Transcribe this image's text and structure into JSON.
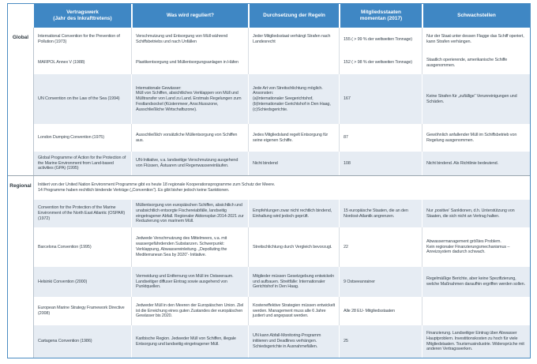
{
  "table": {
    "headers": [
      "",
      "Vertragswerk\n(Jahr des Inkrafttretens)",
      "Was wird reguliert?",
      "Durchsetzung der Regeln",
      "Mitgliedsstaaten\nmomentan (2017)",
      "Schwachstellen"
    ],
    "sections": [
      {
        "label": "Global",
        "intro": "",
        "rows": [
          [
            "International Convention for the Prevention of Pollution (1973)",
            "Verschmutzung und Entsorgung von Müll während Schiffsbetriebs und nach Unfällen",
            "Jeder Mitgliedsstaat verhängt Strafen nach Landesrecht",
            "155 ( > 99 % der weltweiten Tonnage)",
            "Nur der Staat unter dessen Flagge das Schiff operiert, kann Strafen verhängen."
          ],
          [
            "MARPOL Annex V (1988)",
            "Plastikentsorgung und Müllentsorgungsanlagen in Häfen",
            "",
            "152 ( > 98 % der weltweiten Tonnage)",
            "Staatlich operierende, amerikanische Schiffe ausgenommen."
          ],
          [
            "UN Convention on the Law of the Sea (1994)",
            "Internationale Gewässer:\nMüll von Schiffen, absichtliches Verklappen von Müll und Mülltransfer von Land zu Land. Erstmals Regelungen zum Festlandsockel (Küstenmeer, Anschlusszone, Ausschließliche Wirtschaftszone).",
            "Jede Art von Streitschlichtung möglich.\nAnsonsten:\n(a)Internationaler Seegerichtshof,\n(b)Internationaler Gerichtshof in Den Haag,\n(c)Schiedsgerichte.",
            "167",
            "Keine Strafen für „zufällige“ Verunreinigungen und Schäden."
          ],
          [
            "London Dumping Convention (1975)",
            "Ausschließlich vorsätzliche Müllentsorgung von Schiffen aus.",
            "Jedes Mitgliedsland regelt Entsorgung für seine eigenen Schiffe.",
            "87",
            "Gewöhnlich anfallender Müll im Schiffsbetrieb von Regelung ausgenommen."
          ],
          [
            "Global Programme of Action for the Protection of the Marine Environment from Land-based activities (GPA) (1995)",
            "UN-Initiative, v.a. landseitige Verschmutzung ausgehend von Flüssen, Ästuaren und Regenwassereinläufen.",
            "Nicht bindend",
            "108",
            "Nicht bindend. Als Richtlinie bedeutend."
          ]
        ]
      },
      {
        "label": "Regional",
        "intro": "Initiiert von der United Nation Environment Programme gibt es heute 18 regionale Kooperationsprogramme zum Schutz der Meere.\n14 Programme haben rechtlich bindende Verträge („Convention“). Es gibt bisher jedoch keine Sanktionen.",
        "rows": [
          [
            "Convention for the Protection of the Marine Environment of the North East Atlantic (OSPAR) (1972)",
            "Müllentsorgung von europäischen Schiffen, absichtlich und unabsichtlich entsorgte Fischereiabfälle, landseitig eingetragener Abfall. Regionaler Aktionsplan 2014-2021 zur Reduzierung von marinem Müll.",
            "Empfehlungen zwar nicht rechtlich bindend, Einhaltung wird jedoch geprüft.",
            "15 europäische Staaten, die an den Nordost-Atlantik angrenzen.",
            "Nur ‚positive‘ Sanktionen, d.h. Unterstützung von Staaten, die sich nicht an Vertrag halten."
          ],
          [
            "Barcelona Convention (1995)",
            "Jedwede Verschmutzung des Mittelmeers, v.a. mit wassergefährdenden Substanzen. Schwerpunkt: Verklappung, Abwassereinleitung. „Depolluting the Mediterranean Sea by 2020“- Initiative.",
            "Streitschlichtung durch Vergleich bevorzugt.",
            "22",
            "Abwassermanagement größtes Problem.\nKein regionaler Finanzierungsmechanismus – Anreizsystem dadurch schwach."
          ],
          [
            "Helsinki Convention (2000)",
            "Vermeidung und Entfernung von Müll im Ostseeraum. Landseitiger diffuser Eintrag sowie ausgehend von Punktquellen.",
            "Mitglieder müssen Gesetzgebung entwickeln und aufbauen. Streitfälle: Internationaler Gerichtshof in Den Haag.",
            "9 Ostseeanrainer",
            "Regelmäßige Berichte, aber keine Spezifizierung, welche Maßnahmen daraufhin ergriffen werden sollen."
          ],
          [
            "European Marine Strategy Framework Directive (2008)",
            "Jedweder Müll in den Meeren der Europäischen Union. Ziel ist die Erreichung eines guten Zustandes der europäischen Gewässer bis 2020.",
            "Kosteneffektive Strategien müssen entwickelt werden. Management muss alle 6 Jahre justiert und angepasst werden.",
            "Alle 28 EU- Mitgliedsstaaten",
            ""
          ],
          [
            "Cartagena Convention (1986)",
            "Karibische Region. Jedweder Müll von Schiffen, illegale Entsorgung und landseitig eingetragener Müll.",
            "UN kann Abfall-Monitoring-Programm initiieren und Deadlines verhängen. Schiedsgerichte in Ausnahmefällen.",
            "25",
            "Finanzierung. Landseitiger Eintrag über Abwasser Hauptproblem. Investitionskosten zu hoch für viele Mitgliedstaaten. Tourismusindustrie. Widersprüche mit anderen Vertragswerken."
          ]
        ]
      }
    ]
  },
  "colors": {
    "header_blue": "#3f87c4",
    "row_shaded": "#e6ecf3",
    "border_blue": "#4a8cc2",
    "body_text": "#3c4852"
  }
}
